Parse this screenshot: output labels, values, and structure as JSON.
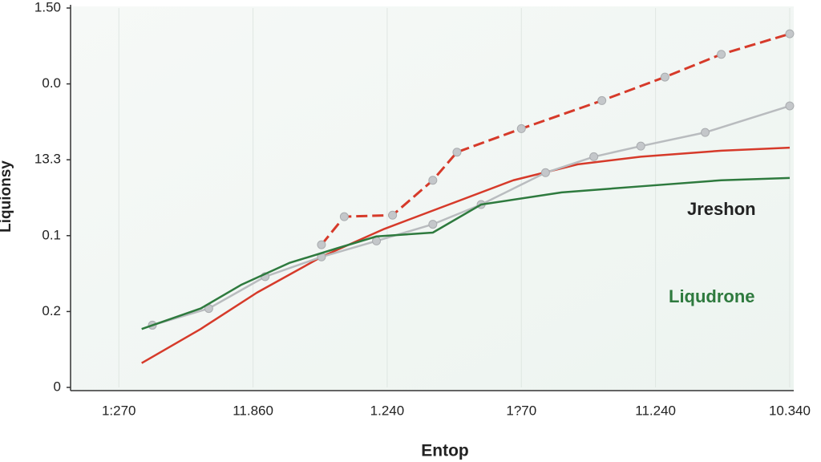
{
  "chart_data": {
    "type": "line",
    "xlabel": "Entop",
    "ylabel": "Liquionsy",
    "xlim": [
      0.64,
      6.03
    ],
    "ylim": [
      0,
      5
    ],
    "xticks": [
      {
        "value": 1,
        "label": "1:270"
      },
      {
        "value": 2,
        "label": "11.860"
      },
      {
        "value": 3,
        "label": "1.240"
      },
      {
        "value": 4,
        "label": "1?70"
      },
      {
        "value": 5,
        "label": "11.240"
      },
      {
        "value": 6,
        "label": "10.340"
      }
    ],
    "yticks": [
      {
        "value": 0,
        "label": "0"
      },
      {
        "value": 1,
        "label": "0.2"
      },
      {
        "value": 2,
        "label": "0.1"
      },
      {
        "value": 3,
        "label": "13.3"
      },
      {
        "value": 4,
        "label": "0.0"
      },
      {
        "value": 5,
        "label": "1.50"
      }
    ],
    "grid": true,
    "series": [
      {
        "color": "#d63a2a",
        "style": "solid",
        "markers": false,
        "x": [
          1.17,
          1.61,
          2.03,
          2.51,
          2.98,
          3.46,
          3.94,
          4.42,
          4.89,
          5.49,
          6.0
        ],
        "values": [
          0.32,
          0.77,
          1.25,
          1.72,
          2.09,
          2.41,
          2.73,
          2.94,
          3.04,
          3.12,
          3.16
        ]
      },
      {
        "color": "#d63a2a",
        "style": "dashed",
        "markers": true,
        "x": [
          2.51,
          2.68,
          3.04,
          3.34,
          3.52,
          4.0,
          4.6,
          5.07,
          5.49,
          6.0
        ],
        "values": [
          1.88,
          2.25,
          2.27,
          2.73,
          3.1,
          3.41,
          3.78,
          4.09,
          4.39,
          4.66
        ]
      },
      {
        "color": "#b9bcbf",
        "style": "solid",
        "markers": true,
        "x": [
          1.25,
          1.67,
          2.09,
          2.51,
          2.92,
          3.34,
          3.7,
          4.18,
          4.54,
          4.89,
          5.37,
          6.0
        ],
        "values": [
          0.82,
          1.04,
          1.46,
          1.72,
          1.93,
          2.15,
          2.41,
          2.83,
          3.04,
          3.18,
          3.36,
          3.71
        ]
      },
      {
        "color": "#2e7a3e",
        "style": "solid",
        "markers": false,
        "x": [
          1.17,
          1.61,
          1.91,
          2.27,
          2.62,
          2.92,
          3.34,
          3.7,
          4.3,
          4.89,
          5.49,
          6.0
        ],
        "values": [
          0.77,
          1.04,
          1.35,
          1.64,
          1.83,
          1.99,
          2.04,
          2.41,
          2.57,
          2.65,
          2.73,
          2.76
        ]
      }
    ],
    "annotations": [
      {
        "text": "Jreshon",
        "color": "#222222"
      },
      {
        "text": "Liqudrone",
        "color": "#2e7a3e"
      }
    ]
  }
}
